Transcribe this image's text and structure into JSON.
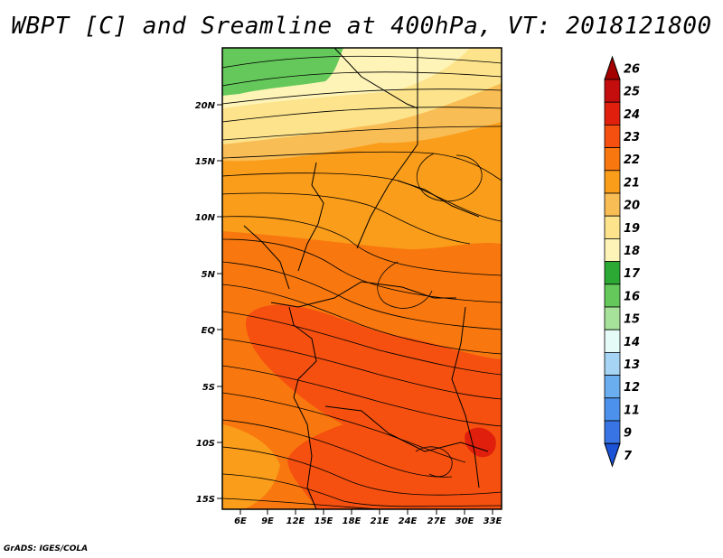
{
  "title": "WBPT [C] and Sreamline at 400hPa, VT: 2018121800",
  "credit": "GrADS: IGES/COLA",
  "map": {
    "lat_labels": [
      "20N",
      "15N",
      "10N",
      "5N",
      "EQ",
      "5S",
      "10S",
      "15S"
    ],
    "lon_labels": [
      "6E",
      "9E",
      "12E",
      "15E",
      "18E",
      "21E",
      "24E",
      "27E",
      "30E",
      "33E"
    ],
    "colorbar": {
      "labels": [
        "26",
        "25",
        "24",
        "23",
        "22",
        "21",
        "20",
        "19",
        "18",
        "17",
        "16",
        "15",
        "14",
        "13",
        "12",
        "11",
        "9",
        "7"
      ],
      "colors": {
        "26": "#a50000",
        "25": "#c40d0d",
        "24": "#e0200d",
        "23": "#f5500f",
        "22": "#f8780f",
        "21": "#fa9d1a",
        "20": "#f9bd55",
        "19": "#fde48c",
        "18": "#fff4b8",
        "17": "#2ca834",
        "16": "#64c85a",
        "15": "#a6e29a",
        "14": "#e5fbf7",
        "13": "#a6d4f4",
        "12": "#6aaef0",
        "11": "#4c92ec",
        "9": "#3874e3",
        "7": "#1c52d6"
      }
    }
  }
}
